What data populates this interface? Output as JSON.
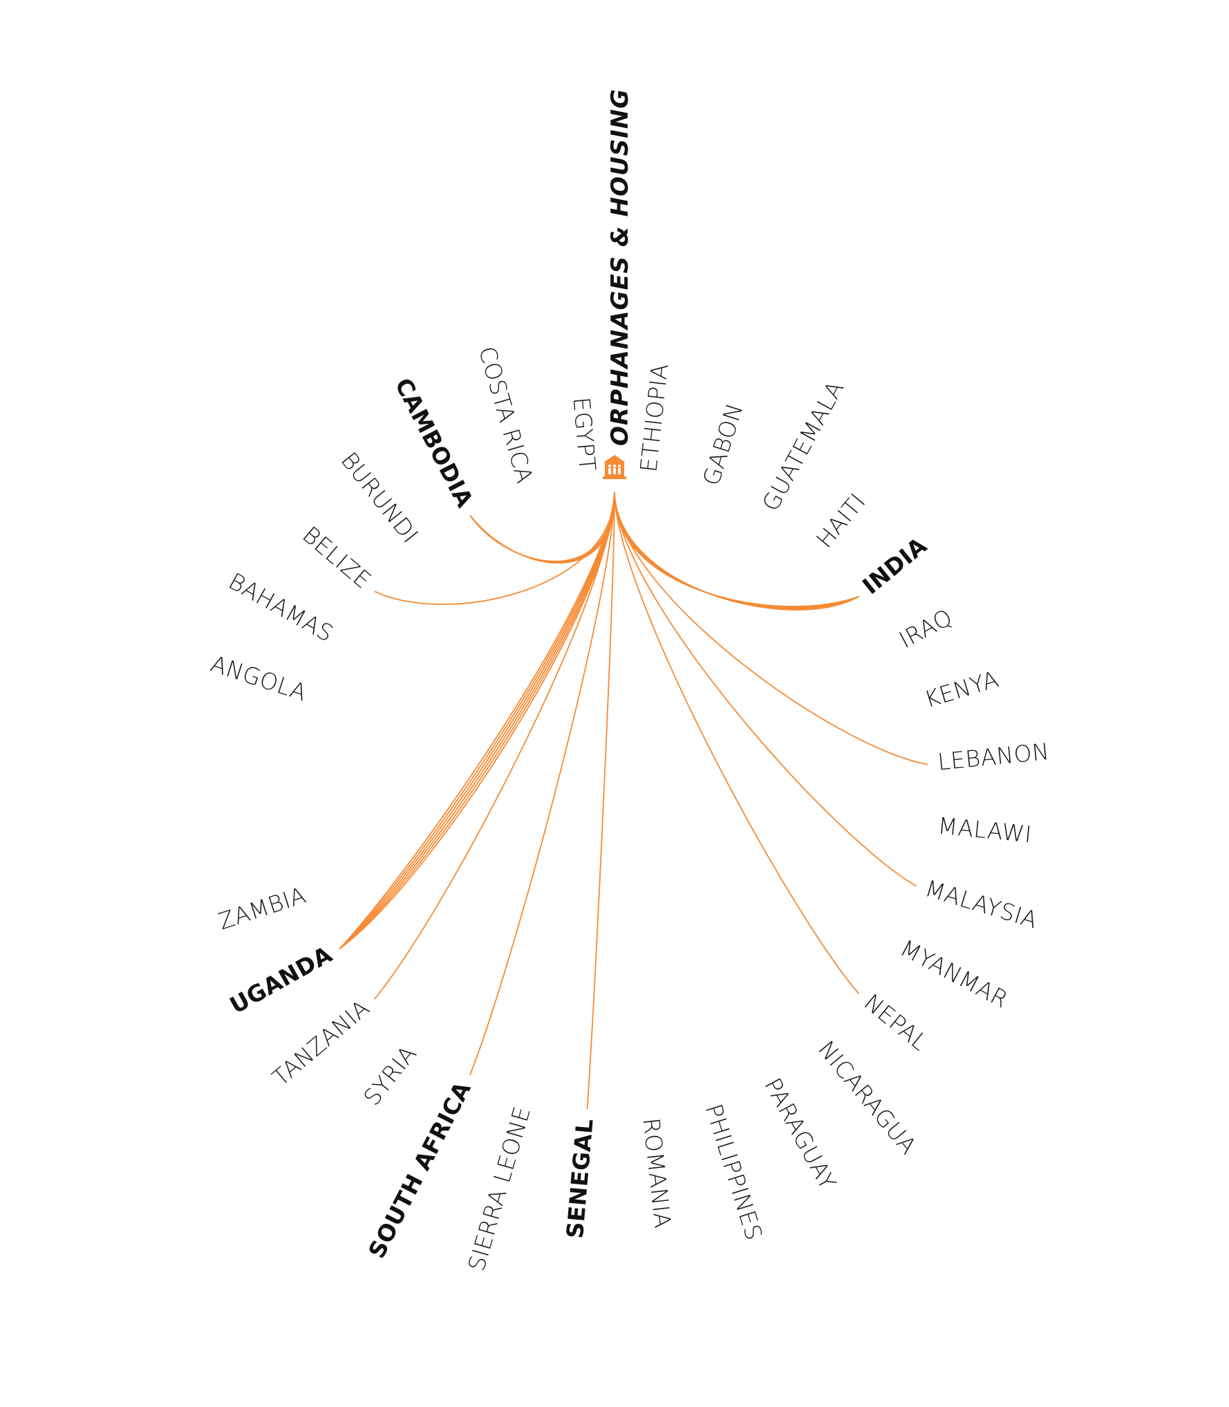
{
  "hub": {
    "title": "ORPHANAGES & HOUSING",
    "icon": "orphanage-house-icon",
    "color": "#f58a34"
  },
  "colors": {
    "link": "#f58a34",
    "text": "#1a1a1a"
  },
  "countries": [
    {
      "name": "ANGOLA",
      "bold": false,
      "links": 0
    },
    {
      "name": "BAHAMAS",
      "bold": false,
      "links": 0
    },
    {
      "name": "BELIZE",
      "bold": false,
      "links": 1
    },
    {
      "name": "BURUNDI",
      "bold": false,
      "links": 0
    },
    {
      "name": "CAMBODIA",
      "bold": true,
      "links": 3
    },
    {
      "name": "COSTA RICA",
      "bold": false,
      "links": 0
    },
    {
      "name": "EGYPT",
      "bold": false,
      "links": 0
    },
    {
      "name": "ETHIOPIA",
      "bold": false,
      "links": 0
    },
    {
      "name": "GABON",
      "bold": false,
      "links": 0
    },
    {
      "name": "GUATEMALA",
      "bold": false,
      "links": 0
    },
    {
      "name": "HAITI",
      "bold": false,
      "links": 0
    },
    {
      "name": "INDIA",
      "bold": true,
      "links": 5
    },
    {
      "name": "IRAQ",
      "bold": false,
      "links": 0
    },
    {
      "name": "KENYA",
      "bold": false,
      "links": 0
    },
    {
      "name": "LEBANON",
      "bold": false,
      "links": 1
    },
    {
      "name": "MALAWI",
      "bold": false,
      "links": 0
    },
    {
      "name": "MALAYSIA",
      "bold": false,
      "links": 1
    },
    {
      "name": "MYANMAR",
      "bold": false,
      "links": 0
    },
    {
      "name": "NEPAL",
      "bold": false,
      "links": 1
    },
    {
      "name": "NICARAGUA",
      "bold": false,
      "links": 0
    },
    {
      "name": "PARAGUAY",
      "bold": false,
      "links": 0
    },
    {
      "name": "PHILIPPINES",
      "bold": false,
      "links": 0
    },
    {
      "name": "ROMANIA",
      "bold": false,
      "links": 0
    },
    {
      "name": "SENEGAL",
      "bold": true,
      "links": 1
    },
    {
      "name": "SIERRA LEONE",
      "bold": false,
      "links": 0
    },
    {
      "name": "SOUTH AFRICA",
      "bold": true,
      "links": 1
    },
    {
      "name": "SYRIA",
      "bold": false,
      "links": 0
    },
    {
      "name": "TANZANIA",
      "bold": false,
      "links": 1
    },
    {
      "name": "UGANDA",
      "bold": true,
      "links": 6
    },
    {
      "name": "ZAMBIA",
      "bold": false,
      "links": 0
    }
  ]
}
